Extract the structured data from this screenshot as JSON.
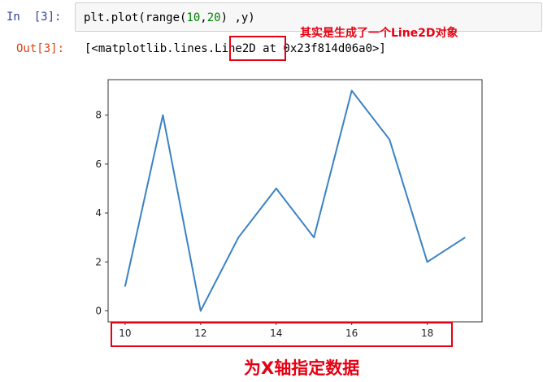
{
  "cell": {
    "in_prompt": "In  [3]:",
    "code": {
      "prefix": "plt.plot(range(",
      "arg1": "10",
      "sep": ",",
      "arg2": "20",
      "suffix": ") ,y)"
    },
    "out_prompt": "Out[3]:",
    "output_text": "[<matplotlib.lines.Line2D at 0x23f814d06a0>]"
  },
  "annotations": {
    "top": "其实是生成了一个Line2D对象",
    "bottom": "为X轴指定数据"
  },
  "colors": {
    "annotation": "#e60012",
    "line": "#3b82c4",
    "in_prompt": "#303f9f",
    "out_prompt": "#d84315"
  },
  "chart_data": {
    "type": "line",
    "x": [
      10,
      11,
      12,
      13,
      14,
      15,
      16,
      17,
      18,
      19
    ],
    "series": [
      {
        "values": [
          1,
          8,
          0,
          3,
          5,
          3,
          9,
          7,
          2,
          3
        ]
      }
    ],
    "xticks": [
      10,
      12,
      14,
      16,
      18
    ],
    "yticks": [
      0,
      2,
      4,
      6,
      8
    ],
    "xlim": [
      9.55,
      19.45
    ],
    "ylim": [
      -0.45,
      9.45
    ],
    "grid": false
  }
}
